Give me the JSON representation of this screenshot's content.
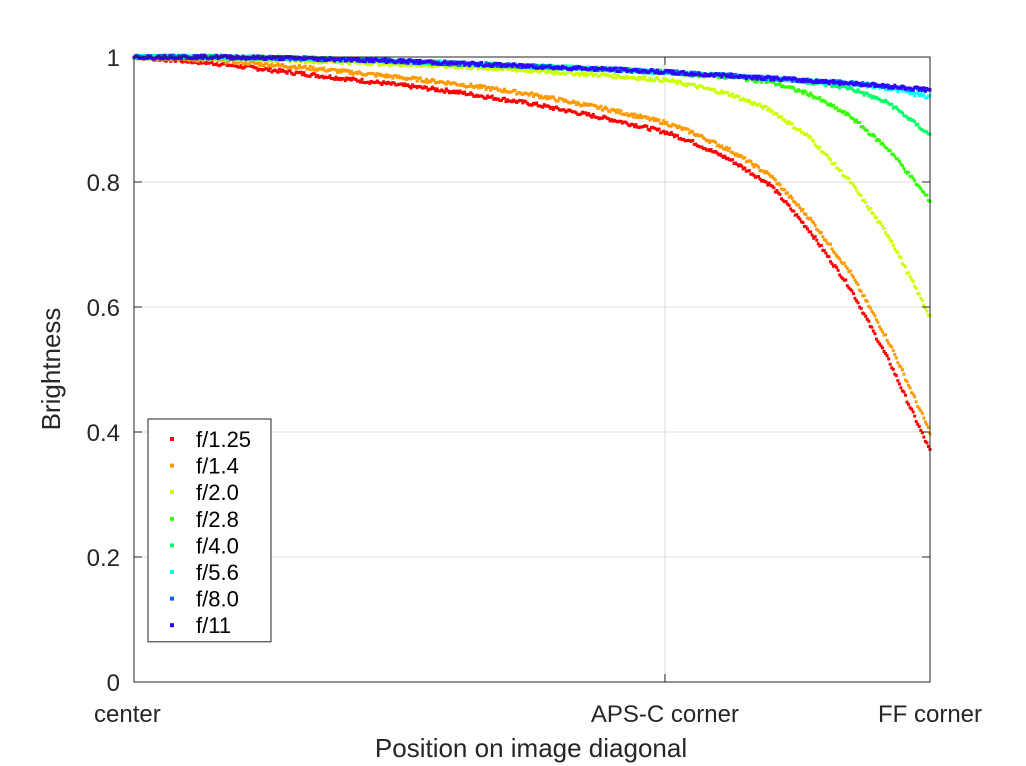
{
  "chart_data": {
    "type": "scatter",
    "title": "",
    "xlabel": "Position on image diagonal",
    "ylabel": "Brightness",
    "xlim": [
      0,
      1
    ],
    "ylim": [
      0,
      1
    ],
    "x_ticks": [
      {
        "value": 0,
        "label": "center"
      },
      {
        "value": 0.667,
        "label": "APS-C corner"
      },
      {
        "value": 1,
        "label": "FF corner"
      }
    ],
    "y_ticks": [
      {
        "value": 0,
        "label": "0"
      },
      {
        "value": 0.2,
        "label": "0.2"
      },
      {
        "value": 0.4,
        "label": "0.4"
      },
      {
        "value": 0.6,
        "label": "0.6"
      },
      {
        "value": 0.8,
        "label": "0.8"
      },
      {
        "value": 1,
        "label": "1"
      }
    ],
    "grid": true,
    "legend_position": "bottom-left",
    "x": [
      0,
      0.1,
      0.2,
      0.3,
      0.4,
      0.5,
      0.6,
      0.667,
      0.7,
      0.75,
      0.8,
      0.85,
      0.9,
      0.95,
      1.0
    ],
    "series": [
      {
        "name": "f/1.25",
        "color": "#ff0000",
        "values": [
          1.0,
          0.99,
          0.975,
          0.96,
          0.945,
          0.925,
          0.9,
          0.88,
          0.865,
          0.835,
          0.795,
          0.72,
          0.63,
          0.51,
          0.37
        ]
      },
      {
        "name": "f/1.4",
        "color": "#ff9900",
        "values": [
          1.0,
          0.995,
          0.985,
          0.972,
          0.958,
          0.94,
          0.915,
          0.895,
          0.88,
          0.85,
          0.81,
          0.74,
          0.655,
          0.54,
          0.4
        ]
      },
      {
        "name": "f/2.0",
        "color": "#ccff00",
        "values": [
          1.0,
          0.999,
          0.995,
          0.99,
          0.985,
          0.978,
          0.97,
          0.963,
          0.955,
          0.94,
          0.915,
          0.87,
          0.8,
          0.71,
          0.585
        ]
      },
      {
        "name": "f/2.8",
        "color": "#33ff00",
        "values": [
          1.0,
          1.0,
          0.998,
          0.995,
          0.99,
          0.985,
          0.98,
          0.976,
          0.972,
          0.968,
          0.96,
          0.94,
          0.905,
          0.85,
          0.77
        ]
      },
      {
        "name": "f/4.0",
        "color": "#00ff66",
        "values": [
          1.0,
          1.0,
          0.998,
          0.995,
          0.99,
          0.985,
          0.98,
          0.976,
          0.973,
          0.97,
          0.966,
          0.96,
          0.95,
          0.925,
          0.875
        ]
      },
      {
        "name": "f/5.6",
        "color": "#00ffff",
        "values": [
          1.0,
          1.0,
          0.998,
          0.995,
          0.99,
          0.985,
          0.98,
          0.976,
          0.973,
          0.97,
          0.966,
          0.962,
          0.958,
          0.95,
          0.935
        ]
      },
      {
        "name": "f/8.0",
        "color": "#0066ff",
        "values": [
          1.0,
          1.0,
          0.998,
          0.995,
          0.99,
          0.985,
          0.98,
          0.976,
          0.973,
          0.97,
          0.966,
          0.962,
          0.958,
          0.953,
          0.945
        ]
      },
      {
        "name": "f/11",
        "color": "#3300ff",
        "values": [
          1.0,
          1.0,
          0.998,
          0.995,
          0.99,
          0.985,
          0.98,
          0.976,
          0.973,
          0.97,
          0.966,
          0.962,
          0.958,
          0.953,
          0.948
        ]
      }
    ]
  }
}
